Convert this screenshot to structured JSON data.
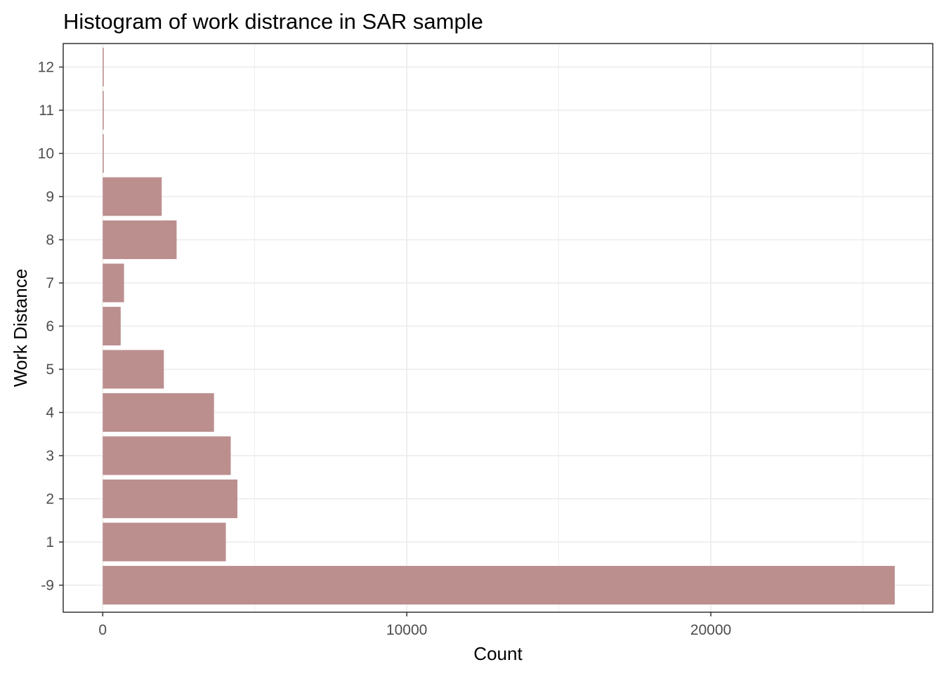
{
  "chart_data": {
    "type": "bar",
    "orientation": "horizontal",
    "title": "Histogram of work distrance in SAR sample",
    "xlabel": "Count",
    "ylabel": "Work Distance",
    "categories": [
      "-9",
      "1",
      "2",
      "3",
      "4",
      "5",
      "6",
      "7",
      "8",
      "9",
      "10",
      "11",
      "12"
    ],
    "values": [
      26050,
      4050,
      4430,
      4210,
      3660,
      2010,
      590,
      700,
      2430,
      1940,
      30,
      35,
      30
    ],
    "xlim": [
      -1300,
      27300
    ],
    "x_ticks": [
      0,
      10000,
      20000
    ],
    "x_tick_labels": [
      "0",
      "10000",
      "20000"
    ],
    "grid": true,
    "bar_color": "#bc8f8f",
    "grid_color": "#ebebeb",
    "panel_border_color": "#333333"
  }
}
